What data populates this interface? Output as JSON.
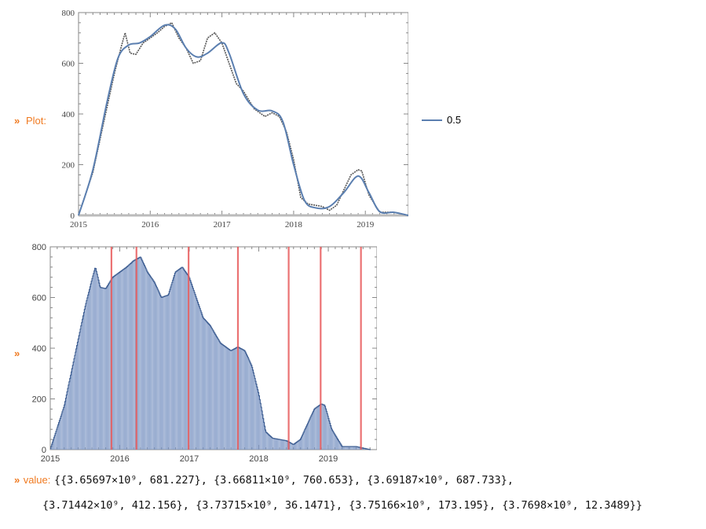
{
  "cells": {
    "plot_label": "Plot:",
    "chevron": "»",
    "value_label": "value:",
    "legend_label": "0.5",
    "value_line1": "{{3.65697×10⁹, 681.227}, {3.66811×10⁹, 760.653}, {3.69187×10⁹, 687.733},",
    "value_line2": "{3.71442×10⁹, 412.156}, {3.73715×10⁹, 36.1471}, {3.75166×10⁹, 173.195}, {3.7698×10⁹, 12.3489}}"
  },
  "colors": {
    "smooth_line": "#5b7fb0",
    "raw_line": "#555555",
    "bars": "#7b95c3",
    "peak_lines": "#e8595a",
    "label_orange": "#f07a20"
  },
  "chart_data": [
    {
      "type": "line",
      "title": "",
      "xlabel": "",
      "ylabel": "",
      "xlim": [
        2015,
        2019.6
      ],
      "ylim": [
        0,
        800
      ],
      "x_ticks": [
        "2015",
        "2016",
        "2017",
        "2018",
        "2019"
      ],
      "y_ticks": [
        "0",
        "200",
        "400",
        "600",
        "800"
      ],
      "legend": {
        "position": "right",
        "entries": [
          "0.5"
        ]
      },
      "series": [
        {
          "name": "0.5",
          "x": [
            2015.0,
            2015.2,
            2015.4,
            2015.55,
            2015.7,
            2015.85,
            2016.0,
            2016.2,
            2016.35,
            2016.5,
            2016.65,
            2016.8,
            2017.0,
            2017.1,
            2017.3,
            2017.5,
            2017.7,
            2017.85,
            2018.0,
            2018.15,
            2018.3,
            2018.5,
            2018.7,
            2018.9,
            2019.05,
            2019.2,
            2019.4,
            2019.6
          ],
          "y": [
            0,
            180,
            450,
            620,
            672,
            680,
            705,
            750,
            735,
            660,
            625,
            640,
            681,
            640,
            480,
            415,
            412,
            370,
            200,
            60,
            30,
            35,
            90,
            155,
            90,
            15,
            12,
            0
          ]
        },
        {
          "name": "",
          "x": [
            2015.0,
            2015.2,
            2015.4,
            2015.5,
            2015.6,
            2015.65,
            2015.72,
            2015.8,
            2015.9,
            2016.0,
            2016.1,
            2016.2,
            2016.3,
            2016.4,
            2016.5,
            2016.6,
            2016.7,
            2016.8,
            2016.9,
            2017.0,
            2017.1,
            2017.2,
            2017.3,
            2017.45,
            2017.6,
            2017.7,
            2017.8,
            2017.9,
            2018.0,
            2018.1,
            2018.2,
            2018.3,
            2018.4,
            2018.5,
            2018.6,
            2018.7,
            2018.8,
            2018.9,
            2018.95,
            2019.05,
            2019.2,
            2019.4,
            2019.6
          ],
          "y": [
            0,
            170,
            430,
            560,
            670,
            720,
            640,
            635,
            680,
            700,
            720,
            745,
            760,
            700,
            660,
            600,
            610,
            700,
            720,
            680,
            600,
            520,
            490,
            420,
            390,
            405,
            390,
            330,
            220,
            70,
            45,
            40,
            35,
            20,
            40,
            100,
            160,
            180,
            175,
            80,
            12,
            12,
            0
          ]
        }
      ]
    },
    {
      "type": "bar",
      "title": "",
      "xlabel": "",
      "ylabel": "",
      "xlim": [
        2015,
        2019.7
      ],
      "ylim": [
        0,
        800
      ],
      "x_ticks": [
        "2015",
        "2016",
        "2017",
        "2018",
        "2019"
      ],
      "y_ticks": [
        "0",
        "200",
        "400",
        "600",
        "800"
      ],
      "x": [
        2015.0,
        2015.2,
        2015.4,
        2015.5,
        2015.6,
        2015.65,
        2015.72,
        2015.8,
        2015.9,
        2016.0,
        2016.1,
        2016.2,
        2016.3,
        2016.4,
        2016.5,
        2016.6,
        2016.7,
        2016.8,
        2016.9,
        2017.0,
        2017.1,
        2017.2,
        2017.3,
        2017.45,
        2017.6,
        2017.7,
        2017.8,
        2017.9,
        2018.0,
        2018.1,
        2018.2,
        2018.3,
        2018.4,
        2018.5,
        2018.6,
        2018.7,
        2018.8,
        2018.9,
        2018.95,
        2019.05,
        2019.2,
        2019.4,
        2019.6
      ],
      "y": [
        0,
        170,
        430,
        560,
        670,
        720,
        640,
        635,
        680,
        700,
        720,
        745,
        760,
        700,
        660,
        600,
        610,
        700,
        720,
        680,
        600,
        520,
        490,
        420,
        390,
        405,
        390,
        330,
        220,
        70,
        45,
        40,
        35,
        20,
        40,
        100,
        160,
        180,
        175,
        80,
        12,
        12,
        0
      ],
      "peak_lines_x": [
        2015.88,
        2016.24,
        2016.99,
        2017.7,
        2018.43,
        2018.89,
        2019.47
      ]
    }
  ]
}
